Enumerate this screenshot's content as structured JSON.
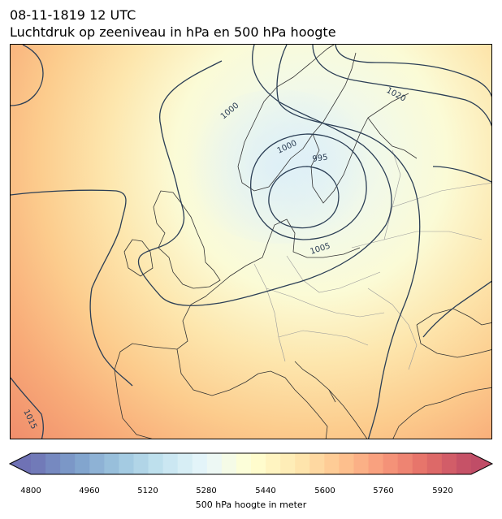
{
  "title": {
    "line1": "08-11-1819 12 UTC",
    "line2": "Luchtdruk op zeeniveau in hPa en 500 hPa hoogte"
  },
  "map": {
    "field": "500 hPa geopotential height (filled) and mean sea level pressure (contours)",
    "low_center_label": "995",
    "isobar_labels": [
      "995",
      "1000",
      "1000",
      "1005",
      "1015",
      "1020"
    ],
    "colors": {
      "isobar": "#2b3e55",
      "coastline": "#333333",
      "border": "#999999"
    }
  },
  "colorbar": {
    "min": 4800,
    "max": 6000,
    "step": 40,
    "ticks": [
      "4800",
      "4960",
      "5120",
      "5280",
      "5440",
      "5600",
      "5760",
      "5920"
    ],
    "label": "500 hPa hoogte in meter",
    "colormap": "RdYlBu_r",
    "extend": "both"
  }
}
